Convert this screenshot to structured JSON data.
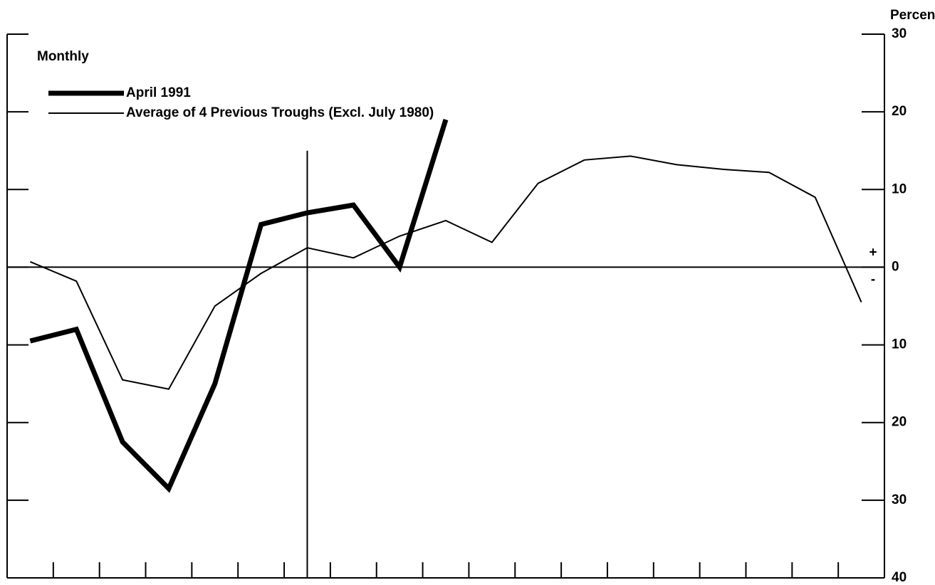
{
  "chart_data": {
    "type": "line",
    "y_label": "Percent",
    "annotations": {
      "period": "Monthly",
      "plus": "+",
      "minus": "-"
    },
    "categories": [
      null,
      null,
      null,
      null,
      null,
      null,
      null,
      null,
      null,
      null,
      null,
      null,
      null,
      null,
      null,
      null,
      null,
      null,
      null
    ],
    "reference_line_category": 6,
    "series": [
      {
        "name": "April 1991",
        "color": "#000000",
        "width": 7,
        "values": [
          -9.5,
          -8,
          -22.5,
          -28.5,
          -15,
          5.5,
          7,
          8,
          0,
          19,
          null,
          null,
          null,
          null,
          null,
          null,
          null,
          null,
          null
        ]
      },
      {
        "name": "Average of 4 Previous Troughs (Excl. July 1980)",
        "color": "#000000",
        "width": 2,
        "values": [
          0.7,
          -1.8,
          -14.5,
          -15.7,
          -5,
          -0.8,
          2.5,
          1.2,
          4,
          6,
          3.2,
          10.8,
          13.8,
          14.3,
          13.2,
          12.6,
          12.2,
          9,
          -4.5
        ]
      }
    ],
    "ylim": [
      -40,
      30
    ],
    "yticks": [
      {
        "value": -40,
        "label": "40"
      },
      {
        "value": -30,
        "label": "30"
      },
      {
        "value": -20,
        "label": "20"
      },
      {
        "value": -10,
        "label": "10"
      },
      0,
      10,
      20,
      30
    ]
  }
}
